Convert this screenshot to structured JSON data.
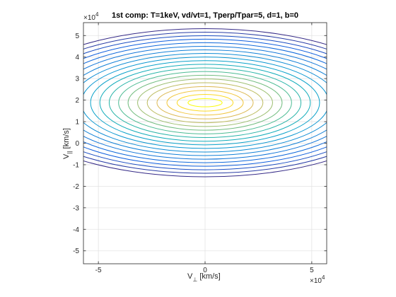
{
  "chart_data": {
    "type": "contour",
    "title": "1st comp: T=1keV, vd/vt=1, Tperp/Tpar=5, d=1, b=0",
    "xlabel": {
      "main": "V",
      "sub": "⊥",
      "unit": " [km/s]"
    },
    "ylabel": {
      "main": "V",
      "sub": "||",
      "unit": " [km/s]"
    },
    "x_exponent": {
      "base": "×10",
      "power": "4"
    },
    "y_exponent": {
      "base": "×10",
      "power": "4"
    },
    "xlim": [
      -57000,
      57000
    ],
    "ylim": [
      -56000,
      56000
    ],
    "xticks": [
      -50000,
      0,
      50000
    ],
    "xtick_labels": [
      "-5",
      "0",
      "5"
    ],
    "yticks": [
      -50000,
      -40000,
      -30000,
      -20000,
      -10000,
      0,
      10000,
      20000,
      30000,
      40000,
      50000
    ],
    "ytick_labels": [
      "-5",
      "-4",
      "-3",
      "-2",
      "-1",
      "0",
      "1",
      "2",
      "3",
      "4",
      "5"
    ],
    "grid": true,
    "colormap": "parula",
    "center": {
      "x": 0,
      "y": 18800
    },
    "contour_level_count": 20,
    "semi_axes_inner": {
      "x": 8000,
      "y": 1900
    },
    "semi_axes_outer": {
      "x": 92000,
      "y": 34400
    }
  }
}
